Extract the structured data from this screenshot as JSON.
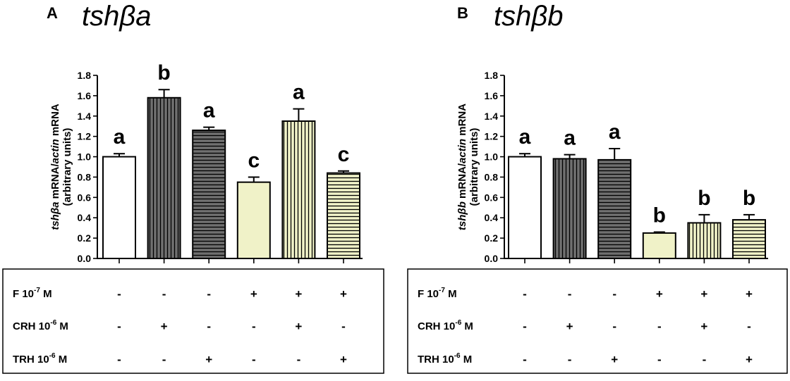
{
  "chart_data": [
    {
      "type": "bar",
      "panel": "A",
      "title": "tshβa",
      "ylabel_gene": "tshβa",
      "ylabel_mid": " mRNA/",
      "ylabel_ref": "actin",
      "ylabel_end": " mRNA",
      "ylabel_line2": "(arbitrary units)",
      "ylim": [
        0,
        1.8
      ],
      "yticks": [
        "0.0",
        "0.2",
        "0.4",
        "0.6",
        "0.8",
        "1.0",
        "1.2",
        "1.4",
        "1.6",
        "1.8"
      ],
      "bars": [
        {
          "value": 1.0,
          "error": 0.03,
          "label": "a",
          "fill": "#ffffff",
          "pattern": "none"
        },
        {
          "value": 1.58,
          "error": 0.08,
          "label": "b",
          "fill": "#6f6f6f",
          "pattern": "vertical"
        },
        {
          "value": 1.26,
          "error": 0.03,
          "label": "a",
          "fill": "#6f6f6f",
          "pattern": "horizontal"
        },
        {
          "value": 0.75,
          "error": 0.05,
          "label": "c",
          "fill": "#f0f2c8",
          "pattern": "none"
        },
        {
          "value": 1.35,
          "error": 0.12,
          "label": "a",
          "fill": "#f0f2c8",
          "pattern": "vertical"
        },
        {
          "value": 0.84,
          "error": 0.02,
          "label": "c",
          "fill": "#f0f2c8",
          "pattern": "horizontal"
        }
      ],
      "treatments": [
        {
          "name": "F 10",
          "exp": "-7",
          "unit": " M",
          "signs": [
            "-",
            "-",
            "-",
            "+",
            "+",
            "+"
          ]
        },
        {
          "name": "CRH 10",
          "exp": "-6",
          "unit": " M",
          "signs": [
            "-",
            "+",
            "-",
            "-",
            "+",
            "-"
          ]
        },
        {
          "name": "TRH 10",
          "exp": "-6",
          "unit": " M",
          "signs": [
            "-",
            "-",
            "+",
            "-",
            "-",
            "+"
          ]
        }
      ]
    },
    {
      "type": "bar",
      "panel": "B",
      "title": "tshβb",
      "ylabel_gene": "tshβb",
      "ylabel_mid": " mRNA/",
      "ylabel_ref": "actin",
      "ylabel_end": " mRNA",
      "ylabel_line2": "(arbitrary units)",
      "ylim": [
        0,
        1.8
      ],
      "yticks": [
        "0.0",
        "0.2",
        "0.4",
        "0.6",
        "0.8",
        "1.0",
        "1.2",
        "1.4",
        "1.6",
        "1.8"
      ],
      "bars": [
        {
          "value": 1.0,
          "error": 0.03,
          "label": "a",
          "fill": "#ffffff",
          "pattern": "none"
        },
        {
          "value": 0.98,
          "error": 0.04,
          "label": "a",
          "fill": "#6f6f6f",
          "pattern": "vertical"
        },
        {
          "value": 0.97,
          "error": 0.11,
          "label": "a",
          "fill": "#6f6f6f",
          "pattern": "horizontal"
        },
        {
          "value": 0.25,
          "error": 0.01,
          "label": "b",
          "fill": "#f0f2c8",
          "pattern": "none"
        },
        {
          "value": 0.35,
          "error": 0.08,
          "label": "b",
          "fill": "#f0f2c8",
          "pattern": "vertical"
        },
        {
          "value": 0.38,
          "error": 0.05,
          "label": "b",
          "fill": "#f0f2c8",
          "pattern": "horizontal"
        }
      ],
      "treatments": [
        {
          "name": "F 10",
          "exp": "-7",
          "unit": " M",
          "signs": [
            "-",
            "-",
            "-",
            "+",
            "+",
            "+"
          ]
        },
        {
          "name": "CRH 10",
          "exp": "-6",
          "unit": " M",
          "signs": [
            "-",
            "+",
            "-",
            "-",
            "+",
            "-"
          ]
        },
        {
          "name": "TRH 10",
          "exp": "-6",
          "unit": " M",
          "signs": [
            "-",
            "-",
            "+",
            "-",
            "-",
            "+"
          ]
        }
      ]
    }
  ]
}
